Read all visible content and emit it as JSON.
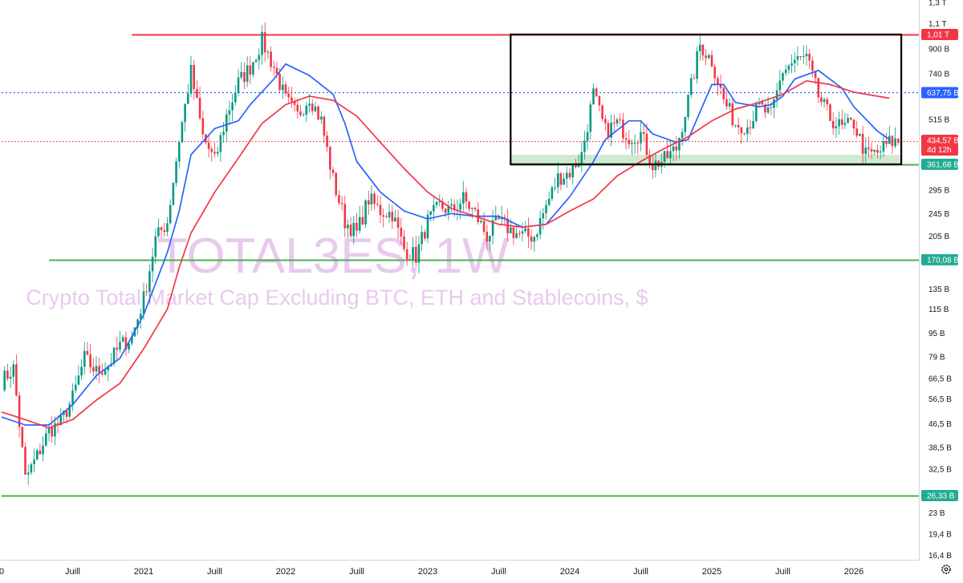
{
  "chart_data": {
    "type": "candlestick",
    "symbol": "TOTAL3ES, 1W",
    "description": "Crypto Total Market Cap Excluding BTC, ETH and Stablecoins, $",
    "y_scale": "log",
    "y_unit": "USD",
    "x_range": [
      "2020-01",
      "2026-05"
    ],
    "y_tick_labels": [
      {
        "label": "1,3 T",
        "value": 1300000000000.0
      },
      {
        "label": "1,1 T",
        "value": 1100000000000.0
      },
      {
        "label": "900 B",
        "value": 900000000000.0
      },
      {
        "label": "740 B",
        "value": 740000000000.0
      },
      {
        "label": "515 B",
        "value": 515000000000.0
      },
      {
        "label": "295 B",
        "value": 295000000000.0
      },
      {
        "label": "245 B",
        "value": 245000000000.0
      },
      {
        "label": "205 B",
        "value": 205000000000.0
      },
      {
        "label": "135 B",
        "value": 135000000000.0
      },
      {
        "label": "115 B",
        "value": 115000000000.0
      },
      {
        "label": "95 B",
        "value": 95000000000.0
      },
      {
        "label": "79 B",
        "value": 79000000000.0
      },
      {
        "label": "66,5 B",
        "value": 66500000000.0
      },
      {
        "label": "56,5 B",
        "value": 56500000000.0
      },
      {
        "label": "46,5 B",
        "value": 46500000000.0
      },
      {
        "label": "38,5 B",
        "value": 38500000000.0
      },
      {
        "label": "32,5 B",
        "value": 32500000000.0
      },
      {
        "label": "23 B",
        "value": 23000000000.0
      },
      {
        "label": "19,4 B",
        "value": 19400000000.0
      },
      {
        "label": "16,4 B",
        "value": 16400000000.0
      }
    ],
    "x_tick_labels": [
      {
        "label": "0",
        "date": "2020-01"
      },
      {
        "label": "Juill",
        "date": "2020-07"
      },
      {
        "label": "2021",
        "date": "2021-01"
      },
      {
        "label": "Juill",
        "date": "2021-07"
      },
      {
        "label": "2022",
        "date": "2022-01"
      },
      {
        "label": "Juill",
        "date": "2022-07"
      },
      {
        "label": "2023",
        "date": "2023-01"
      },
      {
        "label": "Juill",
        "date": "2023-07"
      },
      {
        "label": "2024",
        "date": "2024-01"
      },
      {
        "label": "Juill",
        "date": "2024-07"
      },
      {
        "label": "2025",
        "date": "2025-01"
      },
      {
        "label": "Juill",
        "date": "2025-07"
      },
      {
        "label": "2026",
        "date": "2026-01"
      }
    ],
    "price_badges": [
      {
        "label": "1,01 T",
        "value": 1010000000000.0,
        "color": "#f23645"
      },
      {
        "label": "637,75 B",
        "value": 637750000000.0,
        "color": "#2962ff"
      },
      {
        "label": "434,57 B",
        "sublabel": "4d 12h",
        "value": 434570000000.0,
        "color": "#f23645",
        "kind": "last-price"
      },
      {
        "label": "361,68 B",
        "value": 361680000000.0,
        "color": "#22ab94"
      },
      {
        "label": "170,08 B",
        "value": 170080000000.0,
        "color": "#22ab94"
      },
      {
        "label": "26,33 B",
        "value": 26330000000.0,
        "color": "#22ab94"
      }
    ],
    "horizontal_lines": [
      {
        "value": 1010000000000.0,
        "color": "#f23645",
        "style": "solid",
        "from": "2020-12"
      },
      {
        "value": 637750000000.0,
        "color": "#2962ff",
        "style": "dotted",
        "from": "2020-01"
      },
      {
        "value": 434570000000.0,
        "color": "#f23645",
        "style": "dotted",
        "from": "2020-01"
      },
      {
        "value": 361680000000.0,
        "color": "#4caf50",
        "style": "solid",
        "from": "2023-08"
      },
      {
        "value": 170080000000.0,
        "color": "#4caf50",
        "style": "solid",
        "from": "2020-05"
      },
      {
        "value": 26330000000.0,
        "color": "#4caf50",
        "style": "solid",
        "from": "2020-01"
      }
    ],
    "range_box": {
      "from": "2023-08",
      "to": "2026-05",
      "high": 1010000000000.0,
      "low": 361680000000.0,
      "color": "#000000"
    },
    "support_zone": {
      "from": "2023-08",
      "to": "2026-05",
      "high": 390000000000.0,
      "low": 361680000000.0,
      "color": "#c8e6c9"
    },
    "moving_averages": [
      {
        "color": "#2962ff",
        "kind": "fast",
        "points": [
          [
            "2020-01",
            49000000000.0
          ],
          [
            "2020-03",
            46000000000.0
          ],
          [
            "2020-05",
            46000000000.0
          ],
          [
            "2020-07",
            54000000000.0
          ],
          [
            "2020-09",
            68000000000.0
          ],
          [
            "2020-11",
            78000000000.0
          ],
          [
            "2021-01",
            110000000000.0
          ],
          [
            "2021-03",
            180000000000.0
          ],
          [
            "2021-04",
            250000000000.0
          ],
          [
            "2021-05",
            390000000000.0
          ],
          [
            "2021-07",
            480000000000.0
          ],
          [
            "2021-09",
            510000000000.0
          ],
          [
            "2021-10",
            580000000000.0
          ],
          [
            "2021-12",
            710000000000.0
          ],
          [
            "2022-01",
            800000000000.0
          ],
          [
            "2022-03",
            730000000000.0
          ],
          [
            "2022-05",
            630000000000.0
          ],
          [
            "2022-06",
            500000000000.0
          ],
          [
            "2022-07",
            370000000000.0
          ],
          [
            "2022-09",
            290000000000.0
          ],
          [
            "2022-11",
            250000000000.0
          ],
          [
            "2023-01",
            235000000000.0
          ],
          [
            "2023-03",
            245000000000.0
          ],
          [
            "2023-05",
            240000000000.0
          ],
          [
            "2023-07",
            240000000000.0
          ],
          [
            "2023-09",
            220000000000.0
          ],
          [
            "2023-11",
            225000000000.0
          ],
          [
            "2024-01",
            280000000000.0
          ],
          [
            "2024-03",
            370000000000.0
          ],
          [
            "2024-04",
            440000000000.0
          ],
          [
            "2024-06",
            510000000000.0
          ],
          [
            "2024-07",
            510000000000.0
          ],
          [
            "2024-08",
            460000000000.0
          ],
          [
            "2024-10",
            430000000000.0
          ],
          [
            "2024-11",
            440000000000.0
          ],
          [
            "2025-01",
            680000000000.0
          ],
          [
            "2025-02",
            680000000000.0
          ],
          [
            "2025-03",
            590000000000.0
          ],
          [
            "2025-05",
            570000000000.0
          ],
          [
            "2025-06",
            580000000000.0
          ],
          [
            "2025-07",
            620000000000.0
          ],
          [
            "2025-08",
            710000000000.0
          ],
          [
            "2025-10",
            760000000000.0
          ],
          [
            "2025-12",
            660000000000.0
          ],
          [
            "2026-01",
            570000000000.0
          ],
          [
            "2026-03",
            470000000000.0
          ],
          [
            "2026-04",
            440000000000.0
          ]
        ]
      },
      {
        "color": "#f23645",
        "kind": "slow",
        "points": [
          [
            "2020-01",
            51000000000.0
          ],
          [
            "2020-03",
            48000000000.0
          ],
          [
            "2020-05",
            45000000000.0
          ],
          [
            "2020-07",
            48000000000.0
          ],
          [
            "2020-09",
            56000000000.0
          ],
          [
            "2020-11",
            64000000000.0
          ],
          [
            "2021-01",
            84000000000.0
          ],
          [
            "2021-03",
            115000000000.0
          ],
          [
            "2021-04",
            160000000000.0
          ],
          [
            "2021-05",
            210000000000.0
          ],
          [
            "2021-07",
            290000000000.0
          ],
          [
            "2021-09",
            380000000000.0
          ],
          [
            "2021-11",
            500000000000.0
          ],
          [
            "2022-01",
            580000000000.0
          ],
          [
            "2022-03",
            620000000000.0
          ],
          [
            "2022-05",
            600000000000.0
          ],
          [
            "2022-07",
            530000000000.0
          ],
          [
            "2022-09",
            430000000000.0
          ],
          [
            "2022-11",
            350000000000.0
          ],
          [
            "2023-01",
            290000000000.0
          ],
          [
            "2023-03",
            255000000000.0
          ],
          [
            "2023-05",
            240000000000.0
          ],
          [
            "2023-07",
            225000000000.0
          ],
          [
            "2023-09",
            220000000000.0
          ],
          [
            "2023-11",
            225000000000.0
          ],
          [
            "2024-01",
            250000000000.0
          ],
          [
            "2024-03",
            275000000000.0
          ],
          [
            "2024-05",
            330000000000.0
          ],
          [
            "2024-07",
            370000000000.0
          ],
          [
            "2024-09",
            410000000000.0
          ],
          [
            "2024-11",
            450000000000.0
          ],
          [
            "2025-01",
            510000000000.0
          ],
          [
            "2025-03",
            560000000000.0
          ],
          [
            "2025-05",
            590000000000.0
          ],
          [
            "2025-07",
            630000000000.0
          ],
          [
            "2025-09",
            700000000000.0
          ],
          [
            "2025-11",
            680000000000.0
          ],
          [
            "2026-01",
            640000000000.0
          ],
          [
            "2026-04",
            610000000000.0
          ]
        ]
      }
    ],
    "price_anchors": [
      [
        "2020-01",
        65000000000.0
      ],
      [
        "2020-02",
        72000000000.0
      ],
      [
        "2020-03",
        30000000000.0
      ],
      [
        "2020-04",
        36000000000.0
      ],
      [
        "2020-05",
        44000000000.0
      ],
      [
        "2020-06",
        47000000000.0
      ],
      [
        "2020-07",
        57000000000.0
      ],
      [
        "2020-08",
        78000000000.0
      ],
      [
        "2020-09",
        70000000000.0
      ],
      [
        "2020-10",
        74000000000.0
      ],
      [
        "2020-11",
        86000000000.0
      ],
      [
        "2020-12",
        92000000000.0
      ],
      [
        "2021-01",
        125000000000.0
      ],
      [
        "2021-02",
        200000000000.0
      ],
      [
        "2021-03",
        230000000000.0
      ],
      [
        "2021-04",
        440000000000.0
      ],
      [
        "2021-05",
        750000000000.0
      ],
      [
        "2021-06",
        450000000000.0
      ],
      [
        "2021-07",
        370000000000.0
      ],
      [
        "2021-08",
        530000000000.0
      ],
      [
        "2021-09",
        690000000000.0
      ],
      [
        "2021-10",
        780000000000.0
      ],
      [
        "2021-11",
        960000000000.0
      ],
      [
        "2021-12",
        780000000000.0
      ],
      [
        "2022-01",
        600000000000.0
      ],
      [
        "2022-02",
        530000000000.0
      ],
      [
        "2022-03",
        620000000000.0
      ],
      [
        "2022-04",
        510000000000.0
      ],
      [
        "2022-05",
        320000000000.0
      ],
      [
        "2022-06",
        230000000000.0
      ],
      [
        "2022-07",
        210000000000.0
      ],
      [
        "2022-08",
        275000000000.0
      ],
      [
        "2022-09",
        250000000000.0
      ],
      [
        "2022-10",
        245000000000.0
      ],
      [
        "2022-11",
        185000000000.0
      ],
      [
        "2022-12",
        175000000000.0
      ],
      [
        "2023-01",
        230000000000.0
      ],
      [
        "2023-02",
        260000000000.0
      ],
      [
        "2023-03",
        250000000000.0
      ],
      [
        "2023-04",
        275000000000.0
      ],
      [
        "2023-05",
        245000000000.0
      ],
      [
        "2023-06",
        205000000000.0
      ],
      [
        "2023-07",
        230000000000.0
      ],
      [
        "2023-08",
        215000000000.0
      ],
      [
        "2023-09",
        205000000000.0
      ],
      [
        "2023-10",
        205000000000.0
      ],
      [
        "2023-11",
        260000000000.0
      ],
      [
        "2023-12",
        325000000000.0
      ],
      [
        "2024-01",
        340000000000.0
      ],
      [
        "2024-02",
        390000000000.0
      ],
      [
        "2024-03",
        630000000000.0
      ],
      [
        "2024-04",
        470000000000.0
      ],
      [
        "2024-05",
        500000000000.0
      ],
      [
        "2024-06",
        450000000000.0
      ],
      [
        "2024-07",
        460000000000.0
      ],
      [
        "2024-08",
        360000000000.0
      ],
      [
        "2024-09",
        375000000000.0
      ],
      [
        "2024-10",
        410000000000.0
      ],
      [
        "2024-11",
        600000000000.0
      ],
      [
        "2024-12",
        930000000000.0
      ],
      [
        "2025-01",
        820000000000.0
      ],
      [
        "2025-02",
        600000000000.0
      ],
      [
        "2025-03",
        500000000000.0
      ],
      [
        "2025-04",
        490000000000.0
      ],
      [
        "2025-05",
        570000000000.0
      ],
      [
        "2025-06",
        530000000000.0
      ],
      [
        "2025-07",
        760000000000.0
      ],
      [
        "2025-08",
        820000000000.0
      ],
      [
        "2025-09",
        840000000000.0
      ],
      [
        "2025-10",
        620000000000.0
      ],
      [
        "2025-11",
        520000000000.0
      ],
      [
        "2025-12",
        480000000000.0
      ],
      [
        "2026-01",
        500000000000.0
      ],
      [
        "2026-02",
        390000000000.0
      ],
      [
        "2026-03",
        395000000000.0
      ],
      [
        "2026-04",
        430000000000.0
      ],
      [
        "2026-05",
        434570000000.0
      ]
    ]
  }
}
